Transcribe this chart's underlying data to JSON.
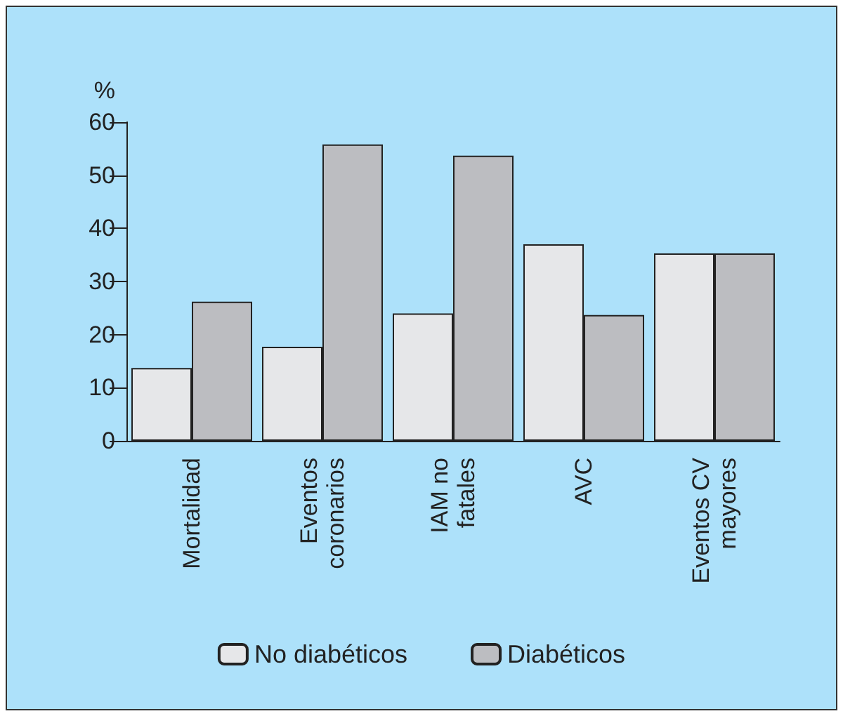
{
  "chart_data": {
    "type": "bar",
    "ylabel": "%",
    "categories": [
      "Mortalidad",
      "Eventos\ncoronarios",
      "IAM no\nfatales",
      "AVC",
      "Eventos CV\nmayores"
    ],
    "series": [
      {
        "name": "No diabéticos",
        "color": "#e6e7e9",
        "values": [
          13.7,
          17.7,
          24.0,
          37.0,
          35.3
        ]
      },
      {
        "name": "Diabéticos",
        "color": "#bcbdc1",
        "values": [
          26.2,
          55.8,
          53.7,
          23.7,
          35.3
        ]
      }
    ],
    "ylim": [
      0,
      60
    ],
    "yticks": [
      0,
      10,
      20,
      30,
      40,
      50,
      60
    ],
    "grid": false,
    "legend": "bottom"
  }
}
